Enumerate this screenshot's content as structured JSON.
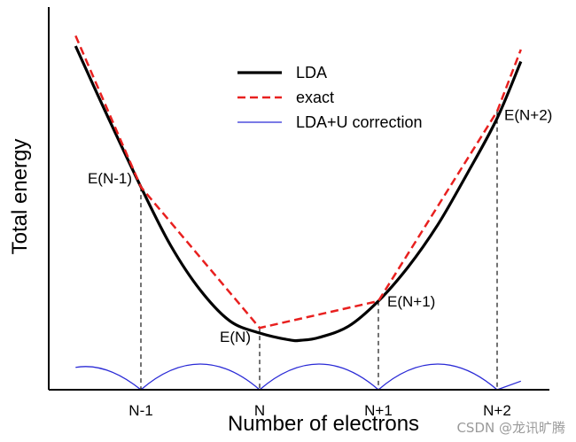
{
  "chart_data": {
    "type": "line",
    "xlabel": "Number of electrons",
    "ylabel": "Total energy",
    "x_ticks": [
      "N-1",
      "N",
      "N+1",
      "N+2"
    ],
    "xlim": [
      -1.97,
      2.2
    ],
    "ylim": [
      0,
      1
    ],
    "grid": false,
    "legend_position": "top-center",
    "series": [
      {
        "name": "LDA",
        "color": "#000000",
        "style": "solid",
        "x": [
          -1.55,
          -1.3,
          -1.0,
          -0.75,
          -0.5,
          -0.25,
          0.0,
          0.25,
          0.35,
          0.5,
          0.75,
          1.0,
          1.25,
          1.5,
          1.75,
          2.0,
          2.2
        ],
        "y": [
          1.0,
          0.81,
          0.59,
          0.42,
          0.29,
          0.2,
          0.165,
          0.145,
          0.144,
          0.152,
          0.185,
          0.258,
          0.357,
          0.48,
          0.63,
          0.79,
          0.955
        ]
      },
      {
        "name": "exact",
        "color": "#e8201f",
        "style": "dashed",
        "x": [
          -1.55,
          -1.0,
          0.0,
          1.0,
          2.0,
          2.2
        ],
        "y": [
          1.03,
          0.59,
          0.18,
          0.258,
          0.81,
          0.99
        ]
      },
      {
        "name": "LDA+U correction",
        "color": "#2a2ad6",
        "style": "solid",
        "x": [
          -1.55,
          -1.0,
          0.0,
          1.0,
          2.0,
          2.2
        ],
        "y": [
          0.065,
          0.0,
          0.0,
          0.0,
          0.0,
          0.025
        ]
      }
    ],
    "points": [
      {
        "label": "E(N-1)",
        "x": -1.0,
        "y": 0.59
      },
      {
        "label": "E(N)",
        "x": 0.0,
        "y": 0.18
      },
      {
        "label": "E(N+1)",
        "x": 1.0,
        "y": 0.258
      },
      {
        "label": "E(N+2)",
        "x": 2.0,
        "y": 0.81
      }
    ]
  },
  "watermark": "CSDN @龙讯旷腾"
}
